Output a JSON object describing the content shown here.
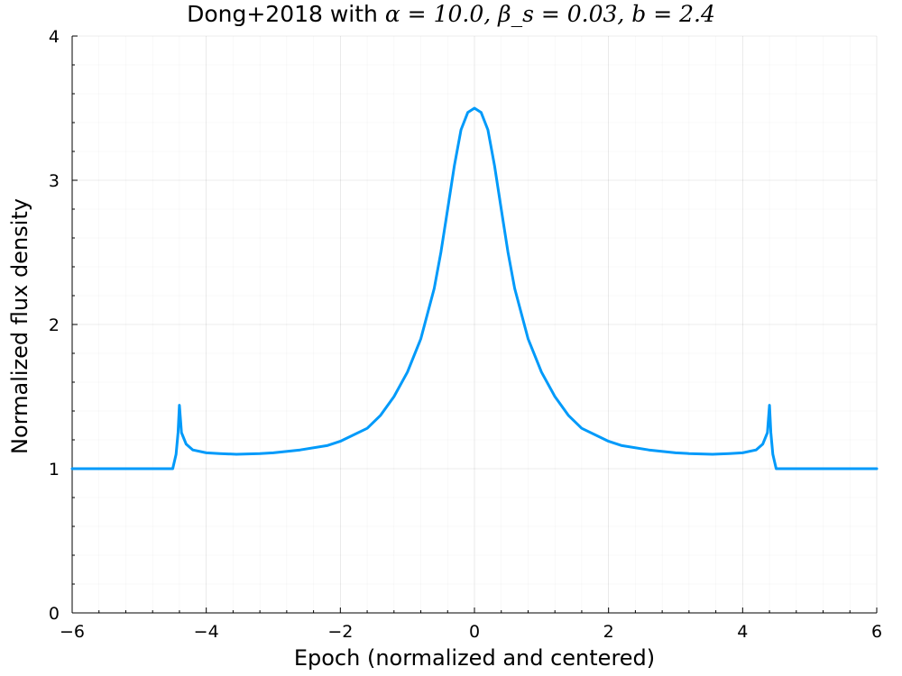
{
  "chart_data": {
    "type": "line",
    "title": {
      "text": "Dong+2018 with ",
      "math": "α = 10.0, β_s = 0.03, b = 2.4"
    },
    "xlabel": "Epoch (normalized and centered)",
    "ylabel": "Normalized flux density",
    "xlim": [
      -6,
      6
    ],
    "ylim": [
      0,
      4
    ],
    "xticks": [
      -6,
      -4,
      -2,
      0,
      2,
      4,
      6
    ],
    "xtick_labels": [
      "−6",
      "−4",
      "−2",
      "0",
      "2",
      "4",
      "6"
    ],
    "yticks": [
      0,
      1,
      2,
      3,
      4
    ],
    "ytick_labels": [
      "0",
      "1",
      "2",
      "3",
      "4"
    ],
    "grid": true,
    "legend": "none",
    "series_color": "#009AFA",
    "series": [
      {
        "x": [
          -6.0,
          -5.0,
          -4.5,
          -4.45,
          -4.42,
          -4.4,
          -4.37,
          -4.3,
          -4.2,
          -4.0,
          -3.8,
          -3.55,
          -3.2,
          -3.0,
          -2.6,
          -2.2,
          -2.0,
          -1.6,
          -1.4,
          -1.2,
          -1.0,
          -0.8,
          -0.6,
          -0.5,
          -0.4,
          -0.3,
          -0.2,
          -0.1,
          0.0,
          0.1,
          0.2,
          0.3,
          0.4,
          0.5,
          0.6,
          0.8,
          1.0,
          1.2,
          1.4,
          1.6,
          2.0,
          2.2,
          2.6,
          3.0,
          3.2,
          3.55,
          3.8,
          4.0,
          4.2,
          4.3,
          4.37,
          4.4,
          4.42,
          4.45,
          4.5,
          5.0,
          6.0
        ],
        "y": [
          1.0,
          1.0,
          1.0,
          1.1,
          1.25,
          1.44,
          1.25,
          1.17,
          1.13,
          1.11,
          1.105,
          1.1,
          1.105,
          1.11,
          1.13,
          1.16,
          1.19,
          1.28,
          1.37,
          1.5,
          1.67,
          1.9,
          2.25,
          2.5,
          2.8,
          3.1,
          3.35,
          3.47,
          3.5,
          3.47,
          3.35,
          3.1,
          2.8,
          2.5,
          2.25,
          1.9,
          1.67,
          1.5,
          1.37,
          1.28,
          1.19,
          1.16,
          1.13,
          1.11,
          1.105,
          1.1,
          1.105,
          1.11,
          1.13,
          1.17,
          1.25,
          1.44,
          1.25,
          1.1,
          1.0,
          1.0,
          1.0
        ]
      }
    ]
  }
}
